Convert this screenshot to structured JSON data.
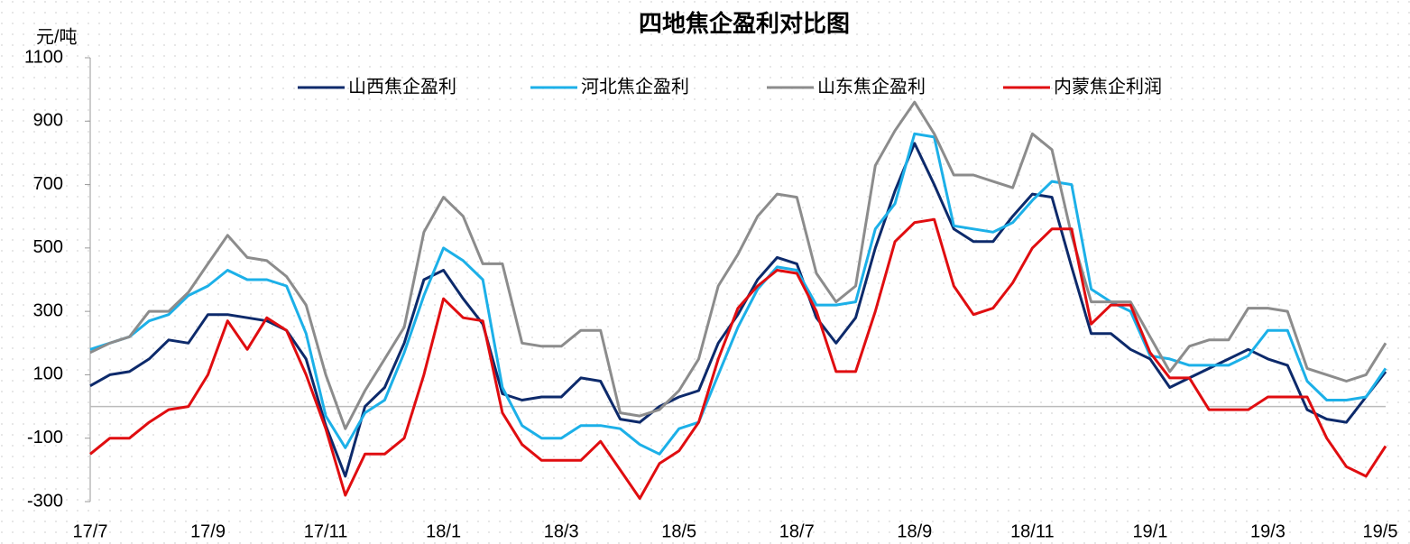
{
  "chart_data": {
    "type": "line",
    "title": "四地焦企盈利对比图",
    "y_label": "元/吨",
    "categories": [
      "17/7",
      null,
      null,
      null,
      null,
      null,
      "17/9",
      null,
      null,
      null,
      null,
      null,
      "17/11",
      null,
      null,
      null,
      null,
      null,
      "18/1",
      null,
      null,
      null,
      null,
      null,
      "18/3",
      null,
      null,
      null,
      null,
      null,
      "18/5",
      null,
      null,
      null,
      null,
      null,
      "18/7",
      null,
      null,
      null,
      null,
      null,
      "18/9",
      null,
      null,
      null,
      null,
      null,
      "18/11",
      null,
      null,
      null,
      null,
      null,
      "19/1",
      null,
      null,
      null,
      null,
      null,
      "19/3",
      null,
      null,
      null,
      null,
      null,
      "19/5"
    ],
    "series": [
      {
        "name": "山西焦企盈利",
        "color": "#0d2a6b",
        "values": [
          65,
          100,
          110,
          150,
          210,
          200,
          290,
          290,
          280,
          270,
          240,
          150,
          -60,
          -220,
          0,
          60,
          200,
          400,
          430,
          340,
          260,
          40,
          20,
          30,
          30,
          90,
          80,
          -40,
          -50,
          0,
          30,
          50,
          200,
          290,
          400,
          470,
          450,
          280,
          200,
          280,
          500,
          680,
          830,
          700,
          560,
          520,
          520,
          600,
          670,
          660,
          440,
          230,
          230,
          180,
          150,
          60,
          90,
          120,
          150,
          180,
          150,
          130,
          -10,
          -40,
          -50,
          30,
          110
        ]
      },
      {
        "name": "河北焦企盈利",
        "color": "#1cb0e8",
        "values": [
          180,
          200,
          220,
          270,
          290,
          350,
          380,
          430,
          400,
          400,
          380,
          230,
          -30,
          -130,
          -20,
          20,
          170,
          350,
          500,
          460,
          400,
          60,
          -60,
          -100,
          -100,
          -60,
          -60,
          -70,
          -120,
          -150,
          -70,
          -50,
          100,
          250,
          370,
          440,
          430,
          320,
          320,
          330,
          560,
          640,
          860,
          850,
          570,
          560,
          550,
          580,
          650,
          710,
          700,
          370,
          330,
          300,
          160,
          150,
          130,
          130,
          130,
          160,
          240,
          240,
          80,
          20,
          20,
          30,
          120
        ]
      },
      {
        "name": "山东焦企盈利",
        "color": "#8c8c8c",
        "values": [
          170,
          200,
          220,
          300,
          300,
          360,
          450,
          540,
          470,
          460,
          410,
          320,
          100,
          -70,
          50,
          150,
          250,
          550,
          660,
          600,
          450,
          450,
          200,
          190,
          190,
          240,
          240,
          -20,
          -30,
          -10,
          50,
          150,
          380,
          480,
          600,
          670,
          660,
          420,
          330,
          380,
          760,
          870,
          960,
          860,
          730,
          730,
          710,
          690,
          860,
          810,
          540,
          330,
          330,
          330,
          220,
          110,
          190,
          210,
          210,
          310,
          310,
          300,
          120,
          100,
          80,
          100,
          200
        ]
      },
      {
        "name": "内蒙焦企利润",
        "color": "#e00d10",
        "values": [
          -150,
          -100,
          -100,
          -50,
          -10,
          0,
          100,
          270,
          180,
          280,
          240,
          100,
          -70,
          -280,
          -150,
          -150,
          -100,
          100,
          340,
          280,
          270,
          -20,
          -120,
          -170,
          -170,
          -170,
          -110,
          -200,
          -290,
          -180,
          -140,
          -50,
          150,
          310,
          380,
          430,
          420,
          300,
          110,
          110,
          300,
          520,
          580,
          590,
          380,
          290,
          310,
          390,
          500,
          560,
          560,
          260,
          320,
          320,
          170,
          90,
          90,
          -10,
          -10,
          -10,
          30,
          30,
          30,
          -100,
          -190,
          -220,
          -125
        ]
      }
    ],
    "ylim": [
      -300,
      1100
    ],
    "yticks": [
      -300,
      -100,
      100,
      300,
      500,
      700,
      900,
      1100
    ],
    "zero_line": true
  }
}
